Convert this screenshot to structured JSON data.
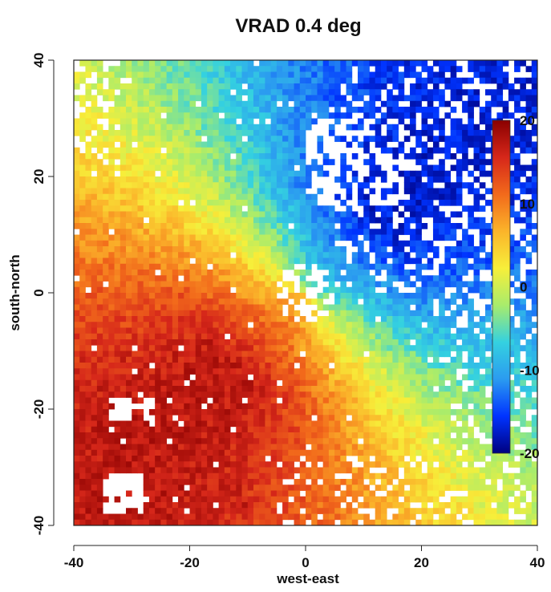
{
  "chart_data": {
    "type": "heatmap",
    "title": "VRAD 0.4 deg",
    "xlabel": "west-east",
    "ylabel": "south-north",
    "xlim": [
      -40,
      40
    ],
    "ylim": [
      -40,
      40
    ],
    "x_ticks": [
      -40,
      -20,
      0,
      20,
      40
    ],
    "y_ticks": [
      40,
      20,
      0,
      -20,
      -40
    ],
    "grid": false,
    "colorbar": {
      "range": [
        -20,
        20
      ],
      "ticks": [
        20,
        10,
        0,
        -10,
        -20
      ],
      "colors": [
        "#00007f",
        "#0033ff",
        "#2b9bf0",
        "#34d1e0",
        "#a8ec6c",
        "#f7ef3a",
        "#fbb42a",
        "#f26a1b",
        "#d6271a",
        "#8a0000"
      ],
      "placement": "right-inside"
    },
    "missing_color": "#ffffff",
    "grid_cells": 80,
    "field_description": "Doppler radial velocity; negative (toward radar, blue) in north-east, positive (away, red/orange) in south-west, zero line along NW-SE diagonal"
  }
}
